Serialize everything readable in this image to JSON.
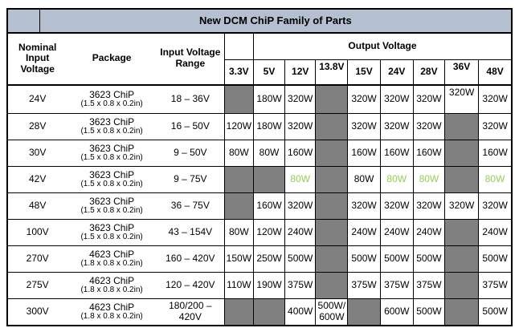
{
  "title": "New DCM ChiP Family of Parts",
  "header": {
    "nominal_input_voltage": "Nominal Input Voltage",
    "package": "Package",
    "input_voltage_range": "Input Voltage Range",
    "output_voltage": "Output Voltage",
    "output_columns": [
      "3.3V",
      "5V",
      "12V",
      "13.8V",
      "15V",
      "24V",
      "28V",
      "36V",
      "48V"
    ]
  },
  "colors": {
    "title_bg": "#b4c0cf",
    "na_cell_gray": "#808080",
    "highlight_green": "#92d050",
    "border": "#000000"
  },
  "rows": [
    {
      "nominal": "24V",
      "package": "3623 ChiP",
      "package_dims": "(1.5 x 0.8 x 0.2in)",
      "range": "18 – 36V",
      "outputs": [
        {
          "na": true
        },
        {
          "text": "180W"
        },
        {
          "text": "320W"
        },
        {
          "na": true
        },
        {
          "text": "320W"
        },
        {
          "text": "320W"
        },
        {
          "text": "320W"
        },
        {
          "text": "320W",
          "raised": true
        },
        {
          "text": "320W"
        }
      ]
    },
    {
      "nominal": "28V",
      "package": "3623 ChiP",
      "package_dims": "(1.5 x 0.8 x 0.2in)",
      "range": "16 – 50V",
      "outputs": [
        {
          "text": "120W"
        },
        {
          "text": "180W"
        },
        {
          "text": "320W"
        },
        {
          "na": true
        },
        {
          "text": "320W"
        },
        {
          "text": "320W"
        },
        {
          "text": "320W"
        },
        {
          "na": true
        },
        {
          "text": "320W"
        }
      ]
    },
    {
      "nominal": "30V",
      "package": "3623 ChiP",
      "package_dims": "(1.5 x 0.8 x 0.2in)",
      "range": "9 – 50V",
      "outputs": [
        {
          "text": "80W"
        },
        {
          "text": "80W"
        },
        {
          "text": "160W"
        },
        {
          "na": true
        },
        {
          "text": "160W"
        },
        {
          "text": "160W"
        },
        {
          "text": "160W"
        },
        {
          "na": true
        },
        {
          "text": "160W"
        }
      ]
    },
    {
      "nominal": "42V",
      "package": "3623 ChiP",
      "package_dims": "(1.5 x 0.8 x 0.2in)",
      "range": "9 – 75V",
      "outputs": [
        {
          "na": true
        },
        {
          "na": true
        },
        {
          "text": "80W",
          "green": true
        },
        {
          "na": true
        },
        {
          "text": "80W"
        },
        {
          "text": "80W",
          "green": true
        },
        {
          "text": "80W",
          "green": true
        },
        {
          "na": true
        },
        {
          "text": "80W",
          "green": true
        }
      ]
    },
    {
      "nominal": "48V",
      "package": "3623 ChiP",
      "package_dims": "(1.5 x 0.8 x 0.2in)",
      "range": "36 – 75V",
      "outputs": [
        {
          "na": true
        },
        {
          "text": "160W"
        },
        {
          "text": "320W"
        },
        {
          "na": true
        },
        {
          "text": "320W"
        },
        {
          "text": "320W"
        },
        {
          "text": "320W"
        },
        {
          "text": "320W"
        },
        {
          "text": "320W"
        }
      ]
    },
    {
      "nominal": "100V",
      "package": "3623 ChiP",
      "package_dims": "(1.5 x 0.8 x 0.2in)",
      "range": "43 – 154V",
      "outputs": [
        {
          "text": "80W"
        },
        {
          "text": "120W"
        },
        {
          "text": "240W"
        },
        {
          "na": true
        },
        {
          "text": "240W"
        },
        {
          "text": "240W"
        },
        {
          "text": "240W"
        },
        {
          "na": true
        },
        {
          "text": "240W"
        }
      ]
    },
    {
      "nominal": "270V",
      "package": "4623 ChiP",
      "package_dims": "(1.8 x 0.8 x 0.2in)",
      "range": "160 – 420V",
      "outputs": [
        {
          "text": "150W"
        },
        {
          "text": "250W"
        },
        {
          "text": "500W"
        },
        {
          "na": true
        },
        {
          "text": "500W"
        },
        {
          "text": "500W"
        },
        {
          "text": "500W"
        },
        {
          "na": true
        },
        {
          "text": "500W"
        }
      ]
    },
    {
      "nominal": "275V",
      "package": "4623 ChiP",
      "package_dims": "(1.8 x 0.8 x 0.2in)",
      "range": "120 – 420V",
      "outputs": [
        {
          "text": "110W"
        },
        {
          "text": "190W"
        },
        {
          "text": "375W"
        },
        {
          "na": true
        },
        {
          "text": "375W"
        },
        {
          "text": "375W"
        },
        {
          "text": "375W"
        },
        {
          "na": true
        },
        {
          "text": "375W"
        }
      ]
    },
    {
      "nominal": "300V",
      "package": "4623 ChiP",
      "package_dims": "(1.8 x 0.8 x 0.2in)",
      "range": "180/200 – 420V",
      "outputs": [
        {
          "na": true
        },
        {
          "na": true
        },
        {
          "text": "400W"
        },
        {
          "text": "500W/ 600W"
        },
        {
          "na": true
        },
        {
          "text": "600W"
        },
        {
          "text": "500W"
        },
        {
          "na": true
        },
        {
          "text": "500W"
        }
      ]
    }
  ]
}
